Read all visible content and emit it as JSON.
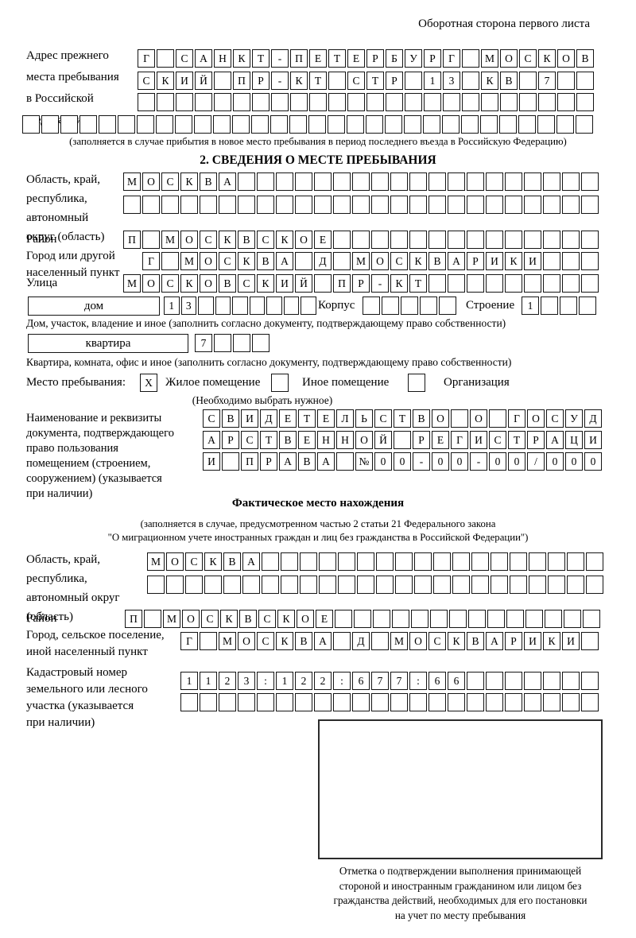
{
  "header": {
    "note": "Оборотная сторона первого листа"
  },
  "prev_address": {
    "label": "Адрес прежнего\nместа пребывания\nв Российской\nФедерации",
    "row1": {
      "chars": "Г САНКТ-ПЕТЕРБУРГ МОСКОВ",
      "count": 24
    },
    "row2": {
      "chars": "СКИЙ ПР-КТ СТР 13 КВ 7",
      "count": 24
    },
    "row3": {
      "chars": "",
      "count": 24
    },
    "row4": {
      "chars": "",
      "count": 30
    },
    "note": "(заполняется в случае прибытия в новое место пребывания в период последнего въезда в Российскую Федерацию)"
  },
  "section2": {
    "title": "2. СВЕДЕНИЯ О МЕСТЕ ПРЕБЫВАНИЯ",
    "region": {
      "label": "Область, край,\nреспублика,\nавтономный\nокруг (область)",
      "row1": {
        "chars": "МОСКВА",
        "count": 25
      },
      "row2": {
        "chars": "",
        "count": 25
      }
    },
    "district": {
      "label": "Район",
      "row": {
        "chars": "П МОСКВСКОЕ",
        "count": 25
      }
    },
    "city": {
      "label": "Город или другой\nнаселенный пункт",
      "row": {
        "chars": "Г МОСКВА Д МОСКВАРИКИ",
        "count": 24
      }
    },
    "street": {
      "label": "Улица",
      "row": {
        "chars": "МОСКОВСКИЙ ПР-КТ",
        "count": 25
      }
    },
    "house": {
      "box_label": "дом",
      "number": {
        "chars": "13",
        "count": 9
      },
      "korpus_label": "Корпус",
      "korpus": {
        "chars": "",
        "count": 5
      },
      "stroenie_label": "Строение",
      "stroenie": {
        "chars": "1",
        "count": 4
      },
      "note": "Дом, участок, владение и иное (заполнить согласно документу, подтверждающему право собственности)"
    },
    "apartment": {
      "box_label": "квартира",
      "number": {
        "chars": "7",
        "count": 4
      },
      "note": "Квартира, комната, офис и иное (заполнить согласно документу, подтверждающему право собственности)"
    },
    "stay_type": {
      "label": "Место пребывания:",
      "options": [
        {
          "label": "Жилое помещение",
          "box": {
            "chars": "X",
            "count": 1
          }
        },
        {
          "label": "Иное помещение",
          "box": {
            "chars": "",
            "count": 1
          }
        },
        {
          "label": "Организация",
          "box": {
            "chars": "",
            "count": 1
          }
        }
      ],
      "note": "(Необходимо выбрать нужное)"
    },
    "doc": {
      "label": "Наименование и реквизиты\nдокумента, подтверждающего\nправо пользования\nпомещением (строением,\nсооружением) (указывается\nпри наличии)",
      "row1": {
        "chars": "СВИДЕТЕЛЬСТВО О ГОСУД",
        "count": 21
      },
      "row2": {
        "chars": "АРСТВЕННОЙ РЕГИСТРАЦИ",
        "count": 21
      },
      "row3": {
        "chars": "И ПРАВА №00-00-00/000",
        "count": 21
      }
    }
  },
  "actual": {
    "title": "Фактическое место нахождения",
    "note": "(заполняется в случае, предусмотренном частью 2 статьи 21 Федерального закона\n\"О миграционном учете иностранных граждан и лиц без гражданства в Российской Федерации\")",
    "region": {
      "label": "Область, край,\nреспублика,\nавтономный округ\n(область)",
      "row1": {
        "chars": "МОСКВА",
        "count": 24
      },
      "row2": {
        "chars": "",
        "count": 24
      }
    },
    "district": {
      "label": "Район",
      "row": {
        "chars": "П МОСКВСКОЕ",
        "count": 25
      }
    },
    "city": {
      "label": "Город, сельское поселение,\nиной населенный пункт",
      "row": {
        "chars": "Г МОСКВА Д МОСКВАРИКИ",
        "count": 22
      }
    },
    "cadastral": {
      "label": "Кадастровый номер\nземельного или лесного\nучастка (указывается\nпри наличии)",
      "row1": {
        "chars": "1123:122:677:66",
        "count": 22
      },
      "row2": {
        "chars": "",
        "count": 22
      }
    },
    "stamp_caption": "Отметка о подтверждении выполнения принимающей\nстороной и иностранным гражданином или лицом без\nгражданства действий, необходимых для его постановки\nна учет по месту пребывания"
  }
}
